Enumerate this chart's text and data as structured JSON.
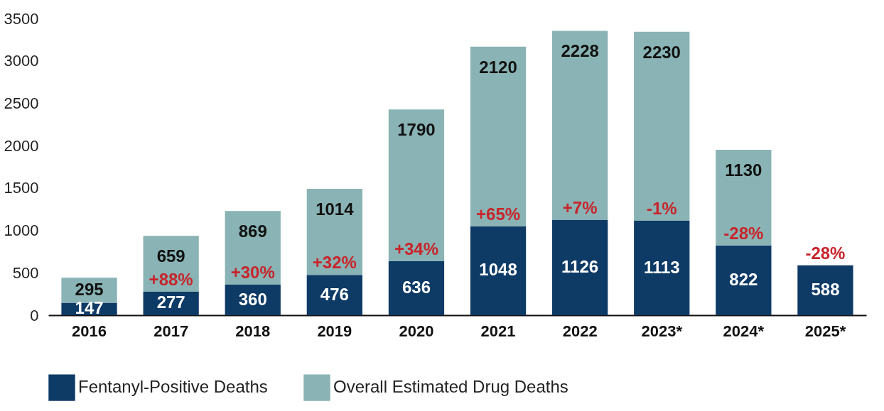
{
  "chart_data": {
    "type": "bar",
    "stacked": true,
    "categories": [
      "2016",
      "2017",
      "2018",
      "2019",
      "2020",
      "2021",
      "2022",
      "2023*",
      "2024*",
      "2025*"
    ],
    "series": [
      {
        "name": "Fentanyl-Positive Deaths",
        "color": "#0e3a66",
        "values": [
          147,
          277,
          360,
          476,
          636,
          1048,
          1126,
          1113,
          822,
          588
        ]
      },
      {
        "name": "Overall Estimated Drug Deaths",
        "color": "#89b3b4",
        "values": [
          295,
          659,
          869,
          1014,
          1790,
          2120,
          2228,
          2230,
          1130,
          null
        ]
      }
    ],
    "ylim": [
      0,
      3500
    ],
    "yticks": [
      0,
      500,
      1000,
      1500,
      2000,
      2500,
      3000,
      3500
    ],
    "data_labels": true,
    "legend": "bottom",
    "annotations": [
      "+88%",
      "+30%",
      "+32%",
      "+34%",
      "+65%",
      "+7%",
      "-1%",
      "-28%",
      "-28%"
    ]
  }
}
